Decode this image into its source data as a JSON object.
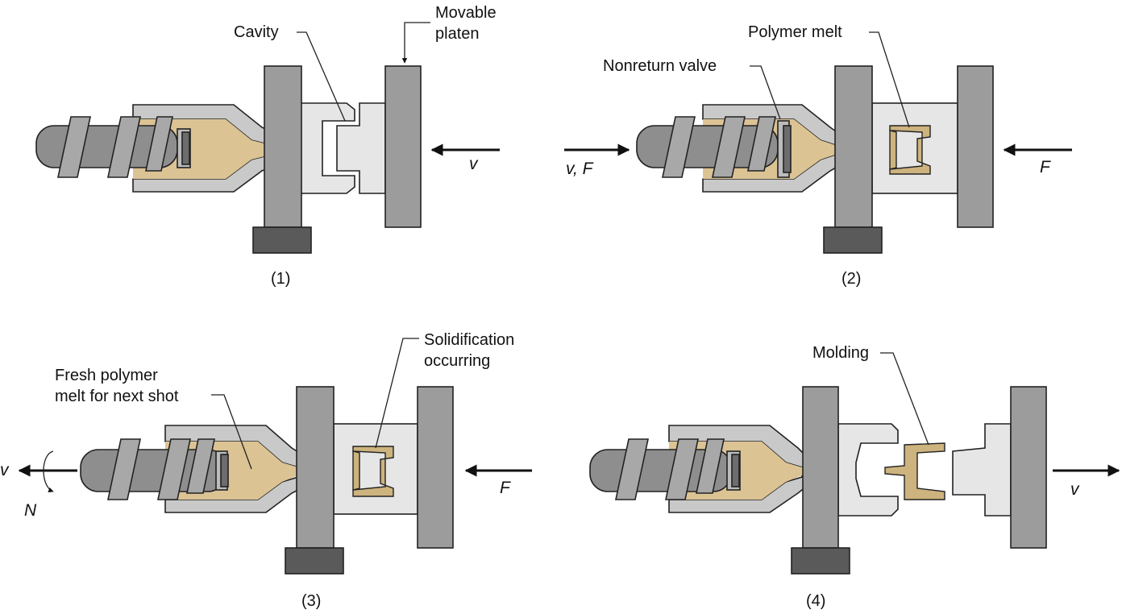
{
  "colors": {
    "platen": "#9c9c9c",
    "mold": "#e6e6e6",
    "barrel": "#c9c9c9",
    "polymer_melt": "#dcc394",
    "base_block": "#5a5a5a"
  },
  "panels": [
    {
      "step_label": "(1)",
      "labels": {
        "cavity": "Cavity",
        "movable_platen_1": "Movable",
        "movable_platen_2": "platen"
      },
      "arrows": {
        "right": "v"
      }
    },
    {
      "step_label": "(2)",
      "labels": {
        "nonreturn_valve": "Nonreturn valve",
        "polymer_melt": "Polymer melt"
      },
      "arrows": {
        "left": "v, F",
        "right": "F"
      }
    },
    {
      "step_label": "(3)",
      "labels": {
        "fresh_melt_1": "Fresh polymer",
        "fresh_melt_2": "melt for next shot",
        "solidification_1": "Solidification",
        "solidification_2": "occurring"
      },
      "arrows": {
        "left": "v",
        "rotation": "N",
        "right": "F"
      }
    },
    {
      "step_label": "(4)",
      "labels": {
        "molding": "Molding"
      },
      "arrows": {
        "right": "v"
      }
    }
  ]
}
